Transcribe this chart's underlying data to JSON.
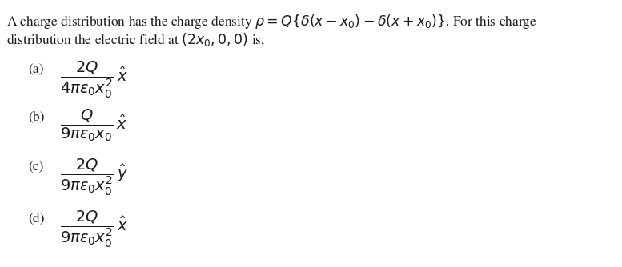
{
  "background_color": "#ffffff",
  "text_color": "#1a1a1a",
  "title_part1": "A charge distribution has the charge density ",
  "title_rho": "$\\rho = Q\\{\\delta(x-x_0) - \\delta(x+x_0)\\}$. For this charge",
  "title_line2": "distribution the electric field at $(2x_0, 0, 0)$ is,",
  "options": [
    {
      "label": "(a)",
      "formula": "$\\dfrac{2Q}{4\\pi\\varepsilon_0 x_0^2}\\,\\hat{x}$"
    },
    {
      "label": "(b)",
      "formula": "$\\dfrac{Q}{9\\pi\\varepsilon_0 x_0}\\,\\hat{x}$"
    },
    {
      "label": "(c)",
      "formula": "$\\dfrac{2Q}{9\\pi\\varepsilon_0 x_0^2}\\,\\hat{y}$"
    },
    {
      "label": "(d)",
      "formula": "$\\dfrac{2Q}{9\\pi\\varepsilon_0 x_0^2}\\,\\hat{x}$"
    }
  ],
  "figwidth": 7.77,
  "figheight": 3.34,
  "dpi": 100
}
